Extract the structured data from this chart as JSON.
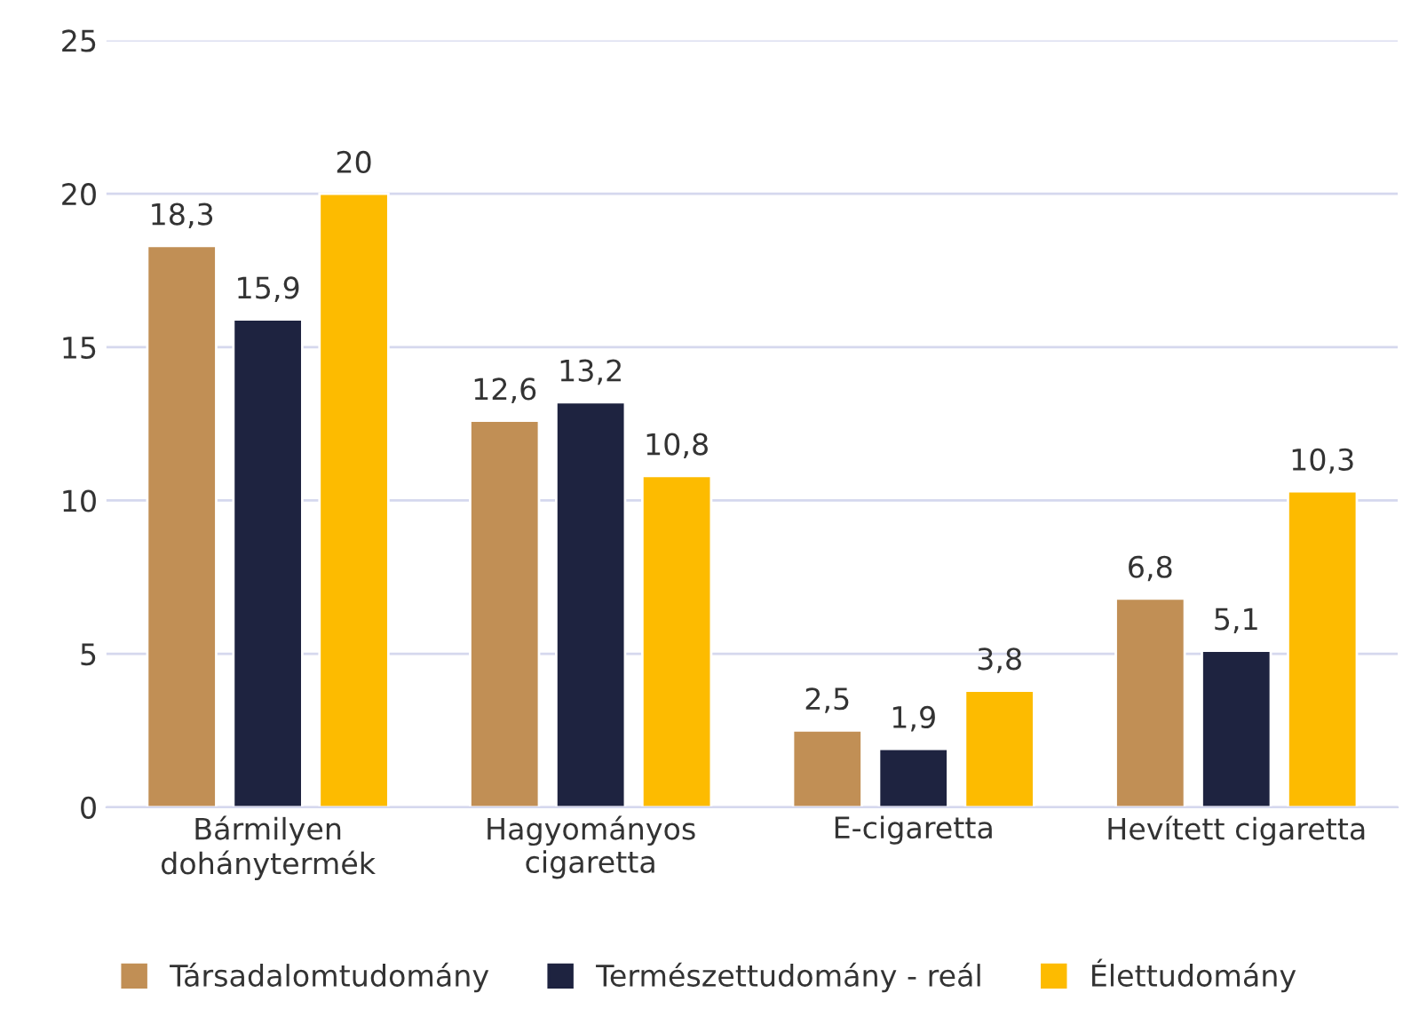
{
  "chart_data": {
    "type": "bar",
    "categories": [
      "Bármilyen\ndohánytermék",
      "Hagyományos\ncigaretta",
      "E-cigaretta",
      "Hevített cigaretta"
    ],
    "series": [
      {
        "name": "Társadalomtudomány",
        "color": "#c18f55",
        "values": [
          18.3,
          12.6,
          2.5,
          6.8
        ],
        "value_labels": [
          "18,3",
          "12,6",
          "2,5",
          "6,8"
        ]
      },
      {
        "name": "Természettudomány - reál",
        "color": "#1e2340",
        "values": [
          15.9,
          13.2,
          1.9,
          5.1
        ],
        "value_labels": [
          "15,9",
          "13,2",
          "1,9",
          "5,1"
        ]
      },
      {
        "name": "Élettudomány",
        "color": "#fdbb00",
        "values": [
          20,
          10.8,
          3.8,
          10.3
        ],
        "value_labels": [
          "20",
          "10,8",
          "3,8",
          "10,3"
        ]
      }
    ],
    "ylim": [
      0,
      25
    ],
    "yticks": [
      0,
      5,
      10,
      15,
      20,
      25
    ],
    "grid": "y",
    "legend": "bottom"
  }
}
